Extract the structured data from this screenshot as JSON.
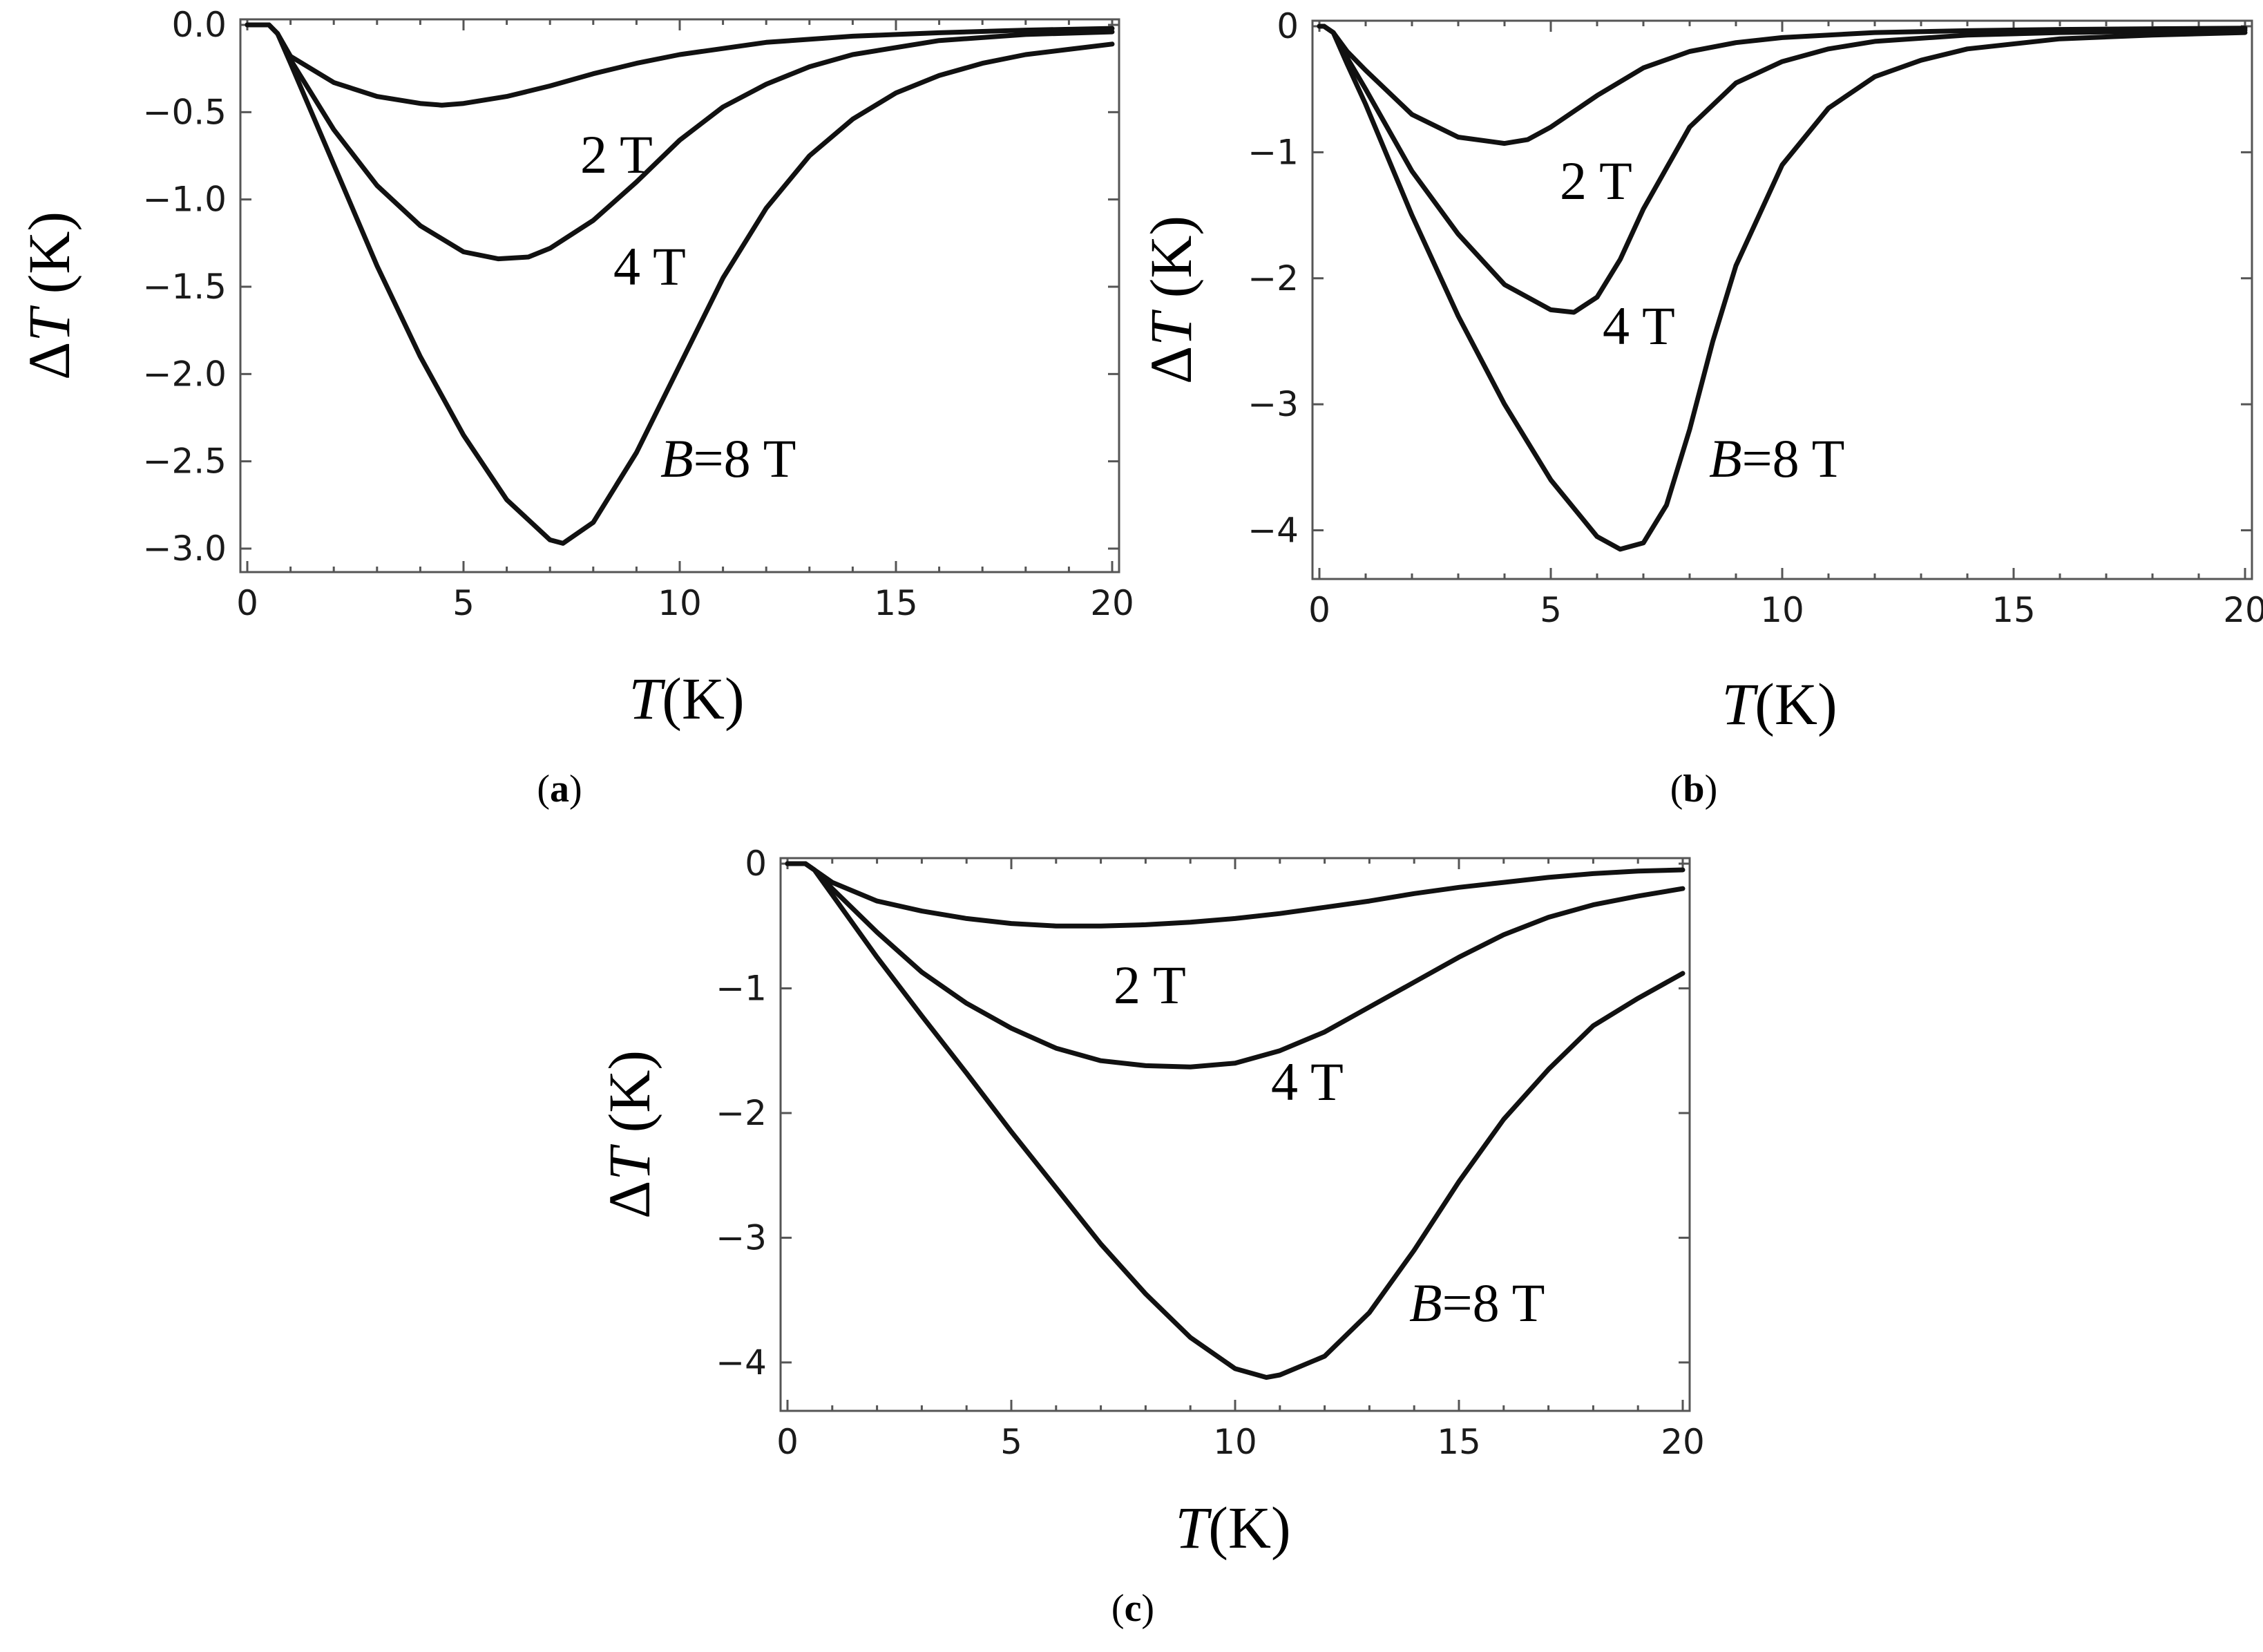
{
  "chart_data": [
    {
      "panel": "a",
      "type": "line",
      "caption": "a",
      "xlabel": {
        "var": "T",
        "unit": "(K)"
      },
      "ylabel": {
        "var": "T",
        "prefix": "Δ",
        "unit": " (K)"
      },
      "xlim": [
        0,
        20
      ],
      "ylim": [
        -3.0,
        0.0
      ],
      "xticks": [
        0,
        5,
        10,
        15,
        20
      ],
      "xtick_labels": [
        "0",
        "5",
        "10",
        "15",
        "20"
      ],
      "yticks": [
        0.0,
        -0.5,
        -1.0,
        -1.5,
        -2.0,
        -2.5,
        -3.0
      ],
      "ytick_labels": [
        "0.0",
        "−0.5",
        "−1.0",
        "−1.5",
        "−2.0",
        "−2.5",
        "−3.0"
      ],
      "series": [
        {
          "name": "2 T",
          "label_prefix": "",
          "label": "2 T",
          "x": [
            0,
            0.5,
            0.7,
            1,
            2,
            3,
            4,
            4.5,
            5,
            6,
            7,
            8,
            9,
            10,
            12,
            14,
            16,
            18,
            20
          ],
          "y": [
            0,
            0,
            -0.05,
            -0.18,
            -0.33,
            -0.41,
            -0.45,
            -0.46,
            -0.45,
            -0.41,
            -0.35,
            -0.28,
            -0.22,
            -0.17,
            -0.1,
            -0.065,
            -0.045,
            -0.03,
            -0.02
          ]
        },
        {
          "name": "4 T",
          "label_prefix": "",
          "label": "4 T",
          "x": [
            0,
            0.5,
            0.7,
            1,
            2,
            3,
            4,
            5,
            5.8,
            6.5,
            7,
            8,
            9,
            10,
            11,
            12,
            13,
            14,
            16,
            18,
            20
          ],
          "y": [
            0,
            0,
            -0.05,
            -0.2,
            -0.6,
            -0.92,
            -1.15,
            -1.3,
            -1.34,
            -1.33,
            -1.28,
            -1.12,
            -0.9,
            -0.66,
            -0.47,
            -0.34,
            -0.24,
            -0.17,
            -0.09,
            -0.055,
            -0.04
          ]
        },
        {
          "name": "B=8 T",
          "label_prefix": "B",
          "label": "=8 T",
          "x": [
            0,
            0.5,
            0.7,
            1,
            2,
            3,
            4,
            5,
            6,
            7,
            7.3,
            8,
            9,
            10,
            11,
            12,
            13,
            14,
            15,
            16,
            17,
            18,
            19,
            20
          ],
          "y": [
            0,
            0,
            -0.05,
            -0.22,
            -0.8,
            -1.38,
            -1.9,
            -2.35,
            -2.72,
            -2.95,
            -2.97,
            -2.85,
            -2.45,
            -1.95,
            -1.45,
            -1.05,
            -0.75,
            -0.54,
            -0.39,
            -0.29,
            -0.22,
            -0.17,
            -0.14,
            -0.11
          ]
        }
      ]
    },
    {
      "panel": "b",
      "type": "line",
      "caption": "b",
      "xlabel": {
        "var": "T",
        "unit": "(K)"
      },
      "ylabel": {
        "var": "T",
        "prefix": "Δ",
        "unit": " (K)"
      },
      "xlim": [
        0,
        20
      ],
      "ylim": [
        -4.2,
        0.0
      ],
      "xticks": [
        0,
        5,
        10,
        15,
        20
      ],
      "xtick_labels": [
        "0",
        "5",
        "10",
        "15",
        "20"
      ],
      "yticks": [
        0,
        -1,
        -2,
        -3,
        -4
      ],
      "ytick_labels": [
        "0",
        "−1",
        "−2",
        "−3",
        "−4"
      ],
      "series": [
        {
          "name": "2 T",
          "label_prefix": "",
          "label": "2 T",
          "x": [
            0,
            0.1,
            0.3,
            0.6,
            1,
            2,
            3,
            4,
            4.5,
            5,
            6,
            7,
            8,
            9,
            10,
            12,
            14,
            16,
            18,
            20
          ],
          "y": [
            0,
            0,
            -0.05,
            -0.2,
            -0.35,
            -0.7,
            -0.88,
            -0.93,
            -0.9,
            -0.8,
            -0.55,
            -0.33,
            -0.2,
            -0.13,
            -0.09,
            -0.05,
            -0.035,
            -0.025,
            -0.02,
            -0.015
          ]
        },
        {
          "name": "4 T",
          "label_prefix": "",
          "label": "4 T",
          "x": [
            0,
            0.1,
            0.3,
            0.6,
            1,
            2,
            3,
            4,
            5,
            5.5,
            6,
            6.5,
            7,
            8,
            9,
            10,
            11,
            12,
            14,
            16,
            18,
            20
          ],
          "y": [
            0,
            0,
            -0.05,
            -0.25,
            -0.5,
            -1.15,
            -1.65,
            -2.05,
            -2.25,
            -2.27,
            -2.15,
            -1.85,
            -1.45,
            -0.8,
            -0.45,
            -0.28,
            -0.18,
            -0.12,
            -0.07,
            -0.05,
            -0.04,
            -0.03
          ]
        },
        {
          "name": "B=8 T",
          "label_prefix": "B",
          "label": "=8 T",
          "x": [
            0,
            0.1,
            0.3,
            0.6,
            1,
            2,
            3,
            4,
            5,
            6,
            6.5,
            7,
            7.5,
            8,
            8.5,
            9,
            10,
            11,
            12,
            13,
            14,
            16,
            18,
            20
          ],
          "y": [
            0,
            0,
            -0.05,
            -0.3,
            -0.62,
            -1.5,
            -2.3,
            -3.0,
            -3.6,
            -4.05,
            -4.15,
            -4.1,
            -3.8,
            -3.2,
            -2.5,
            -1.9,
            -1.1,
            -0.65,
            -0.4,
            -0.27,
            -0.18,
            -0.1,
            -0.07,
            -0.05
          ]
        }
      ]
    },
    {
      "panel": "c",
      "type": "line",
      "caption": "c",
      "xlabel": {
        "var": "T",
        "unit": "(K)"
      },
      "ylabel": {
        "var": "T",
        "prefix": "Δ",
        "unit": " (K)"
      },
      "xlim": [
        0,
        20
      ],
      "ylim": [
        -4.2,
        0.0
      ],
      "xticks": [
        0,
        5,
        10,
        15,
        20
      ],
      "xtick_labels": [
        "0",
        "5",
        "10",
        "15",
        "20"
      ],
      "yticks": [
        0,
        -1,
        -2,
        -3,
        -4
      ],
      "ytick_labels": [
        "0",
        "−1",
        "−2",
        "−3",
        "−4"
      ],
      "series": [
        {
          "name": "2 T",
          "label_prefix": "",
          "label": "2 T",
          "x": [
            0,
            0.4,
            0.6,
            1,
            2,
            3,
            4,
            5,
            6,
            7,
            8,
            9,
            10,
            11,
            12,
            13,
            14,
            15,
            16,
            17,
            18,
            19,
            20
          ],
          "y": [
            0,
            0,
            -0.05,
            -0.15,
            -0.3,
            -0.38,
            -0.44,
            -0.48,
            -0.5,
            -0.5,
            -0.49,
            -0.47,
            -0.44,
            -0.4,
            -0.35,
            -0.3,
            -0.24,
            -0.19,
            -0.15,
            -0.11,
            -0.08,
            -0.06,
            -0.05
          ]
        },
        {
          "name": "4 T",
          "label_prefix": "",
          "label": "4 T",
          "x": [
            0,
            0.4,
            0.6,
            1,
            2,
            3,
            4,
            5,
            6,
            7,
            8,
            9,
            10,
            11,
            12,
            13,
            14,
            15,
            16,
            17,
            18,
            19,
            20
          ],
          "y": [
            0,
            0,
            -0.05,
            -0.2,
            -0.55,
            -0.87,
            -1.12,
            -1.32,
            -1.48,
            -1.58,
            -1.62,
            -1.63,
            -1.6,
            -1.5,
            -1.35,
            -1.15,
            -0.95,
            -0.75,
            -0.57,
            -0.43,
            -0.33,
            -0.26,
            -0.2
          ]
        },
        {
          "name": "B=8 T",
          "label_prefix": "B",
          "label": "=8 T",
          "x": [
            0,
            0.4,
            0.6,
            1,
            2,
            3,
            4,
            5,
            6,
            7,
            8,
            9,
            10,
            10.7,
            11,
            12,
            13,
            14,
            15,
            16,
            17,
            18,
            19,
            20
          ],
          "y": [
            0,
            0,
            -0.05,
            -0.25,
            -0.75,
            -1.22,
            -1.68,
            -2.15,
            -2.6,
            -3.05,
            -3.45,
            -3.8,
            -4.05,
            -4.12,
            -4.1,
            -3.95,
            -3.6,
            -3.1,
            -2.55,
            -2.05,
            -1.65,
            -1.3,
            -1.08,
            -0.88
          ]
        }
      ]
    }
  ]
}
